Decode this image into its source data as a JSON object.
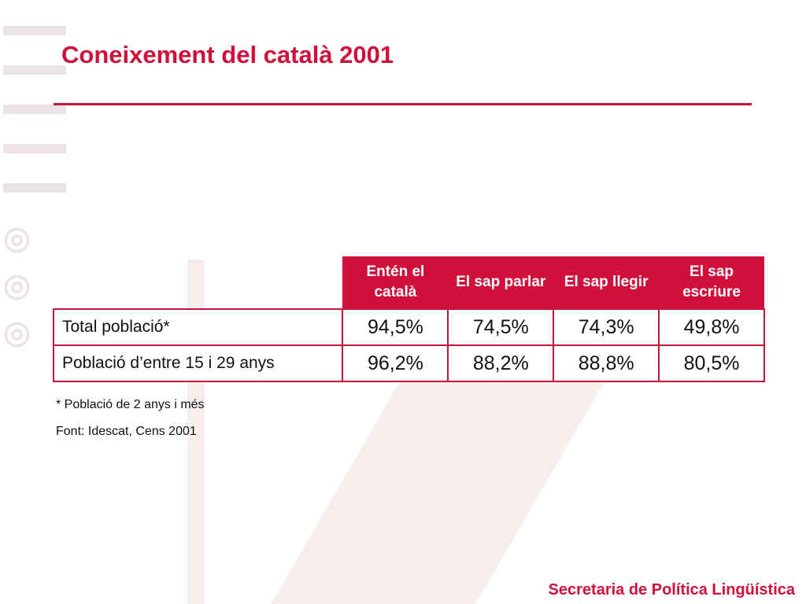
{
  "slide": {
    "title": "Coneixement del català 2001",
    "footer": "Secretaria de Política Lingüística"
  },
  "table": {
    "headers": [
      "Entén el català",
      "El sap parlar",
      "El sap llegir",
      "El sap escriure"
    ],
    "rows": [
      {
        "label": "Total població*",
        "values": [
          "94,5%",
          "74,5%",
          "74,3%",
          "49,8%"
        ]
      },
      {
        "label": "Població d’entre 15 i 29 anys",
        "values": [
          "96,2%",
          "88,2%",
          "88,8%",
          "80,5%"
        ]
      }
    ]
  },
  "notes": {
    "footnote": "* Població de 2 anys i més",
    "source": "Font: Idescat, Cens 2001"
  },
  "colors": {
    "accent": "#d0103a",
    "text": "#111111",
    "background": "#ffffff"
  }
}
